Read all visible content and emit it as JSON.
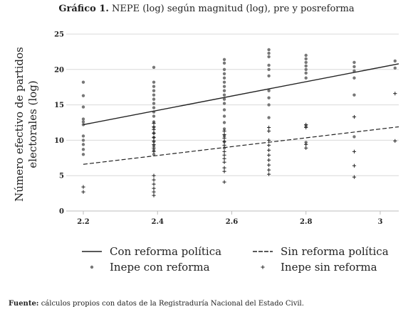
{
  "figure": {
    "title_prefix": "Gráfico 1.",
    "title_rest": "NEPE (log) según magnitud (log), pre y posreforma"
  },
  "source": {
    "label": "Fuente:",
    "text": "cálculos propios con datos de la Registraduría Nacional del Estado Civil."
  },
  "chart_data": {
    "type": "scatter",
    "title": "NEPE (log) según magnitud (log), pre y posreforma",
    "ylabel": "Número efectivo de partidos electorales (log)",
    "ylabel_lines": [
      "Número efectivo de partidos",
      "electorales (log)"
    ],
    "xlabel": "",
    "xlim": [
      2.2,
      3.05
    ],
    "ylim": [
      0,
      25
    ],
    "x_ticks": [
      2.2,
      2.4,
      2.6,
      2.8,
      3
    ],
    "x_tick_labels": [
      "2.2",
      "2.4",
      "2.6",
      "2.8",
      "3"
    ],
    "y_ticks": [
      0,
      5,
      10,
      15,
      20,
      25
    ],
    "y_tick_labels": [
      "0",
      "5",
      "10",
      "15",
      "20",
      "25"
    ],
    "grid": true,
    "legend_position": "bottom",
    "series": [
      {
        "name": "Con reforma política",
        "kind": "line",
        "style": "solid",
        "color": "#222222",
        "x": [
          2.2,
          3.05
        ],
        "y": [
          12.2,
          20.8
        ]
      },
      {
        "name": "Sin reforma política",
        "kind": "line",
        "style": "dashed",
        "color": "#222222",
        "x": [
          2.2,
          3.05
        ],
        "y": [
          6.6,
          11.9
        ]
      },
      {
        "name": "Inepe con reforma",
        "kind": "points",
        "marker": "dot",
        "color": "#777777",
        "points": [
          [
            2.2,
            18.2
          ],
          [
            2.2,
            16.3
          ],
          [
            2.2,
            14.7
          ],
          [
            2.2,
            13.0
          ],
          [
            2.2,
            12.6
          ],
          [
            2.2,
            12.2
          ],
          [
            2.2,
            10.6
          ],
          [
            2.2,
            10.0
          ],
          [
            2.2,
            9.4
          ],
          [
            2.2,
            8.7
          ],
          [
            2.2,
            8.0
          ],
          [
            2.39,
            20.3
          ],
          [
            2.39,
            18.2
          ],
          [
            2.39,
            17.6
          ],
          [
            2.39,
            17.0
          ],
          [
            2.39,
            16.4
          ],
          [
            2.39,
            15.8
          ],
          [
            2.39,
            15.2
          ],
          [
            2.39,
            14.6
          ],
          [
            2.39,
            14.0
          ],
          [
            2.39,
            13.4
          ],
          [
            2.39,
            12.6
          ],
          [
            2.39,
            11.8
          ],
          [
            2.39,
            11.0
          ],
          [
            2.39,
            10.4
          ],
          [
            2.39,
            9.8
          ],
          [
            2.39,
            9.2
          ],
          [
            2.39,
            8.6
          ],
          [
            2.39,
            8.0
          ],
          [
            2.58,
            21.4
          ],
          [
            2.58,
            20.9
          ],
          [
            2.58,
            20.0
          ],
          [
            2.58,
            19.4
          ],
          [
            2.58,
            18.8
          ],
          [
            2.58,
            18.2
          ],
          [
            2.58,
            17.6
          ],
          [
            2.58,
            17.0
          ],
          [
            2.58,
            16.4
          ],
          [
            2.58,
            15.8
          ],
          [
            2.58,
            15.2
          ],
          [
            2.58,
            14.3
          ],
          [
            2.58,
            13.4
          ],
          [
            2.58,
            12.5
          ],
          [
            2.58,
            11.6
          ],
          [
            2.58,
            10.6
          ],
          [
            2.58,
            9.8
          ],
          [
            2.58,
            8.9
          ],
          [
            2.7,
            22.8
          ],
          [
            2.7,
            22.3
          ],
          [
            2.7,
            21.8
          ],
          [
            2.7,
            20.6
          ],
          [
            2.7,
            20.0
          ],
          [
            2.7,
            19.1
          ],
          [
            2.7,
            17.0
          ],
          [
            2.7,
            16.0
          ],
          [
            2.7,
            15.0
          ],
          [
            2.7,
            13.2
          ],
          [
            2.8,
            22.0
          ],
          [
            2.8,
            21.5
          ],
          [
            2.8,
            21.0
          ],
          [
            2.8,
            20.5
          ],
          [
            2.8,
            20.0
          ],
          [
            2.8,
            19.5
          ],
          [
            2.8,
            18.8
          ],
          [
            2.8,
            12.0
          ],
          [
            2.8,
            9.7
          ],
          [
            2.93,
            21.0
          ],
          [
            2.93,
            20.4
          ],
          [
            2.93,
            19.8
          ],
          [
            2.93,
            18.8
          ],
          [
            2.93,
            16.4
          ],
          [
            2.93,
            10.5
          ],
          [
            3.04,
            21.2
          ],
          [
            3.04,
            20.2
          ]
        ]
      },
      {
        "name": "Inepe sin reforma",
        "kind": "points",
        "marker": "plus",
        "color": "#222222",
        "points": [
          [
            2.2,
            3.4
          ],
          [
            2.2,
            2.7
          ],
          [
            2.39,
            12.4
          ],
          [
            2.39,
            11.9
          ],
          [
            2.39,
            11.5
          ],
          [
            2.39,
            11.0
          ],
          [
            2.39,
            10.4
          ],
          [
            2.39,
            9.9
          ],
          [
            2.39,
            9.4
          ],
          [
            2.39,
            8.9
          ],
          [
            2.39,
            8.4
          ],
          [
            2.39,
            5.0
          ],
          [
            2.39,
            4.4
          ],
          [
            2.39,
            3.8
          ],
          [
            2.39,
            3.2
          ],
          [
            2.39,
            2.7
          ],
          [
            2.39,
            2.2
          ],
          [
            2.58,
            11.3
          ],
          [
            2.58,
            10.8
          ],
          [
            2.58,
            10.3
          ],
          [
            2.58,
            9.8
          ],
          [
            2.58,
            9.3
          ],
          [
            2.58,
            8.4
          ],
          [
            2.58,
            7.9
          ],
          [
            2.58,
            7.4
          ],
          [
            2.58,
            6.9
          ],
          [
            2.58,
            6.1
          ],
          [
            2.58,
            5.6
          ],
          [
            2.58,
            4.1
          ],
          [
            2.7,
            11.8
          ],
          [
            2.7,
            11.3
          ],
          [
            2.7,
            10.0
          ],
          [
            2.7,
            9.3
          ],
          [
            2.7,
            8.6
          ],
          [
            2.7,
            7.9
          ],
          [
            2.7,
            7.2
          ],
          [
            2.7,
            6.5
          ],
          [
            2.7,
            5.8
          ],
          [
            2.7,
            5.2
          ],
          [
            2.8,
            12.2
          ],
          [
            2.8,
            11.8
          ],
          [
            2.8,
            9.4
          ],
          [
            2.8,
            8.9
          ],
          [
            2.93,
            13.3
          ],
          [
            2.93,
            8.4
          ],
          [
            2.93,
            6.4
          ],
          [
            2.93,
            4.8
          ],
          [
            3.04,
            16.6
          ],
          [
            3.04,
            9.9
          ]
        ]
      }
    ]
  }
}
